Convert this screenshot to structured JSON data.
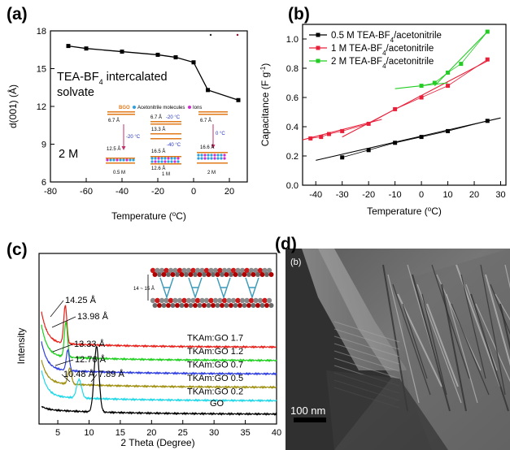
{
  "panel_a": {
    "label": "(a)",
    "annotation_line1": "TEA-BF",
    "annotation_sub": "4",
    "annotation_line1_rest": " intercalated",
    "annotation_line2": "solvate",
    "concentration": "2 M",
    "inset": {
      "bgo_label": "BGO",
      "legend_acetonitrile": "Acetonitrile molecules",
      "legend_ions": "Ions",
      "d_067": "6.7 Å",
      "temp_m20": "-20 °C",
      "temp_m40": "-40 °C",
      "temp_0": "0 °C",
      "d_125": "12.5 Å",
      "d_133": "13.3 Å",
      "d_165": "16.5 Å",
      "d_126": "12.6 Å",
      "d_166": "16.6 Å",
      "conc_05": "0.5 M",
      "conc_1": "1 M",
      "conc_2": "2 M"
    }
  },
  "panel_b": {
    "label": "(b)"
  },
  "panel_c": {
    "label": "(c)",
    "peaks": [
      {
        "text": "14.25 Å"
      },
      {
        "text": "13.98 Å"
      },
      {
        "text": "13.33 Å"
      },
      {
        "text": "12.76 Å"
      },
      {
        "text": "10.48 Å"
      },
      {
        "text": "7.89 Å"
      }
    ],
    "inset_scale": "14 ~ 15 Å"
  },
  "panel_d": {
    "label": "(d)",
    "inner_label": "(b)",
    "scale_bar": "100 nm"
  },
  "chart_data": [
    {
      "type": "line",
      "xlabel": "Temperature (°C)",
      "ylabel": "d(001) (Å)",
      "xlim": [
        -80,
        30
      ],
      "ylim": [
        6,
        18
      ],
      "xticks": [
        -80,
        -60,
        -40,
        -20,
        0,
        20
      ],
      "yticks": [
        6,
        9,
        12,
        15,
        18
      ],
      "series": [
        {
          "x": [
            -70,
            -60,
            -40,
            -20,
            -10,
            0,
            8,
            25
          ],
          "y": [
            16.8,
            16.6,
            16.35,
            16.1,
            15.9,
            15.5,
            13.3,
            12.5
          ],
          "color": "#000000"
        }
      ]
    },
    {
      "type": "scatter",
      "xlabel": "Temperature (°C)",
      "ylabel": "Capacitance (F g⁻¹)",
      "xlim": [
        -45,
        32
      ],
      "ylim": [
        0,
        1.1
      ],
      "xticks": [
        -40,
        -30,
        -20,
        -10,
        0,
        10,
        20,
        30
      ],
      "yticks": [
        0.0,
        0.2,
        0.4,
        0.6,
        0.8,
        1.0
      ],
      "legend": "top-left",
      "series": [
        {
          "name": "0.5 M TEA-BF4/acetonitrile",
          "color": "#000000",
          "x": [
            -30,
            -20,
            -10,
            0,
            10,
            25
          ],
          "y": [
            0.19,
            0.24,
            0.29,
            0.33,
            0.37,
            0.44
          ],
          "fit": [
            [
              -40,
              0.17
            ],
            [
              30,
              0.46
            ]
          ]
        },
        {
          "name": "1 M TEA-BF4/acetonitrile",
          "color": "#e8203a",
          "x": [
            -42,
            -38,
            -35,
            -30,
            -20,
            -10,
            0,
            10,
            25
          ],
          "y": [
            0.32,
            0.33,
            0.35,
            0.37,
            0.42,
            0.52,
            0.6,
            0.68,
            0.86
          ],
          "fit": [
            [
              -45,
              0.31
            ],
            [
              -15,
              0.45
            ],
            [
              -30,
              0.33
            ],
            [
              25,
              0.85
            ]
          ]
        },
        {
          "name": "2 M TEA-BF4/acetonitrile",
          "color": "#22cc22",
          "x": [
            0,
            5,
            10,
            15,
            25
          ],
          "y": [
            0.68,
            0.7,
            0.77,
            0.83,
            1.05
          ],
          "fit": [
            [
              -10,
              0.66
            ],
            [
              10,
              0.7
            ],
            [
              5,
              0.68
            ],
            [
              25,
              1.05
            ]
          ]
        }
      ]
    },
    {
      "type": "line",
      "xlabel": "2 Theta (Degree)",
      "ylabel": "Intensity",
      "xlim": [
        2,
        40
      ],
      "xticks": [
        5,
        10,
        15,
        20,
        25,
        30,
        35,
        40
      ],
      "series": [
        {
          "name": "TKAm:GO 1.7",
          "color": "#e8201a",
          "base": 5,
          "peak": 6.2,
          "height": 0.52,
          "width": 0.35,
          "tail": 0.95
        },
        {
          "name": "TKAm:GO 1.2",
          "color": "#1fd01f",
          "base": 4,
          "peak": 6.3,
          "height": 0.48,
          "width": 0.35,
          "tail": 0.95
        },
        {
          "name": "TKAm:GO 0.7",
          "color": "#3040e0",
          "base": 3,
          "peak": 6.6,
          "height": 0.28,
          "width": 0.35,
          "tail": 0.85
        },
        {
          "name": "TKAm:GO 0.5",
          "color": "#a09010",
          "base": 2,
          "peak": 6.9,
          "height": 0.22,
          "width": 0.4,
          "tail": 0.7
        },
        {
          "name": "TKAm:GO 0.2",
          "color": "#20d8e8",
          "base": 1,
          "peak": 8.4,
          "height": 0.25,
          "width": 0.55,
          "tail": 0.8
        },
        {
          "name": "GO",
          "color": "#000000",
          "base": 0,
          "peak": 11.2,
          "height": 0.9,
          "width": 0.55,
          "tail": 0.1
        }
      ]
    }
  ]
}
